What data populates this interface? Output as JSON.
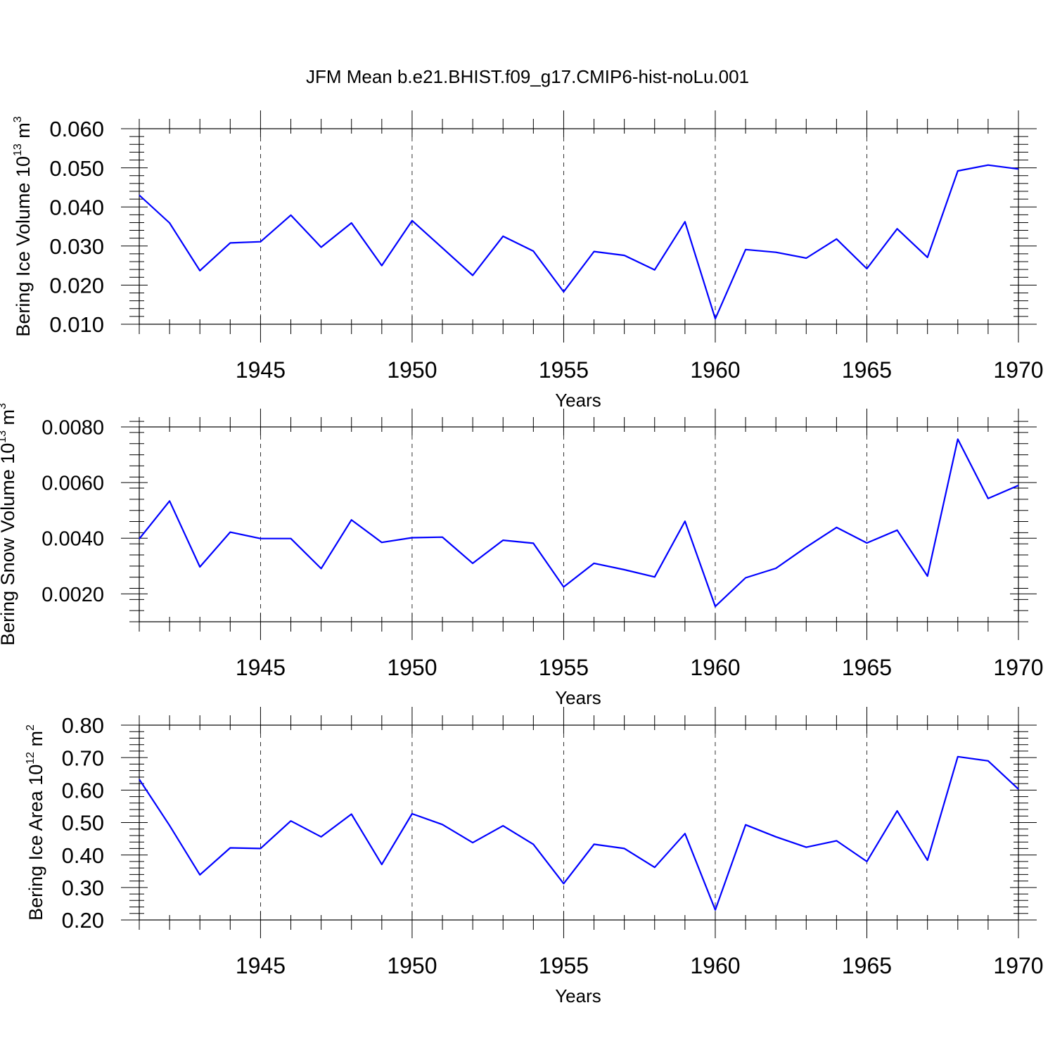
{
  "title": "JFM Mean b.e21.BHIST.f09_g17.CMIP6-hist-noLu.001",
  "line_color": "#0000ff",
  "chart_data": [
    {
      "type": "line",
      "ylabel": "Bering Ice Volume 10",
      "ylabel_sup": "13",
      "ylabel_unit": "m",
      "ylabel_unit_sup": "3",
      "xlabel": "Years",
      "xlim": [
        1941,
        1970
      ],
      "ylim": [
        0.01,
        0.06
      ],
      "xticks": [
        1945,
        1950,
        1955,
        1960,
        1965,
        1970
      ],
      "yticks": [
        0.01,
        0.02,
        0.03,
        0.04,
        0.05,
        0.06
      ],
      "ytick_labels": [
        "0.010",
        "0.020",
        "0.030",
        "0.040",
        "0.050",
        "0.060"
      ],
      "x": [
        1941,
        1942,
        1943,
        1944,
        1945,
        1946,
        1947,
        1948,
        1949,
        1950,
        1951,
        1952,
        1953,
        1954,
        1955,
        1956,
        1957,
        1958,
        1959,
        1960,
        1961,
        1962,
        1963,
        1964,
        1965,
        1966,
        1967,
        1968,
        1969,
        1970
      ],
      "values": [
        0.043,
        0.0359,
        0.0237,
        0.0308,
        0.0311,
        0.0379,
        0.0297,
        0.0359,
        0.025,
        0.0365,
        0.0295,
        0.0225,
        0.0325,
        0.0287,
        0.0183,
        0.0286,
        0.0276,
        0.0239,
        0.0362,
        0.0114,
        0.0291,
        0.0284,
        0.0269,
        0.0318,
        0.0242,
        0.0344,
        0.0271,
        0.0492,
        0.0507,
        0.0497
      ]
    },
    {
      "type": "line",
      "ylabel": "Bering Snow Volume 10",
      "ylabel_sup": "13",
      "ylabel_unit": "m",
      "ylabel_unit_sup": "3",
      "xlabel": "Years",
      "xlim": [
        1941,
        1970
      ],
      "ylim": [
        0.001,
        0.008
      ],
      "xticks": [
        1945,
        1950,
        1955,
        1960,
        1965,
        1970
      ],
      "yticks": [
        0.002,
        0.004,
        0.006,
        0.008
      ],
      "ytick_labels": [
        "0.0020",
        "0.0040",
        "0.0060",
        "0.0080"
      ],
      "x": [
        1941,
        1942,
        1943,
        1944,
        1945,
        1946,
        1947,
        1948,
        1949,
        1950,
        1951,
        1952,
        1953,
        1954,
        1955,
        1956,
        1957,
        1958,
        1959,
        1960,
        1961,
        1962,
        1963,
        1964,
        1965,
        1966,
        1967,
        1968,
        1969,
        1970
      ],
      "values": [
        0.00398,
        0.00534,
        0.00297,
        0.00422,
        0.00399,
        0.00399,
        0.00291,
        0.00466,
        0.00385,
        0.00402,
        0.00404,
        0.0031,
        0.00393,
        0.00382,
        0.00225,
        0.0031,
        0.00287,
        0.00261,
        0.00461,
        0.00155,
        0.00258,
        0.00292,
        0.00368,
        0.00439,
        0.00383,
        0.00429,
        0.00264,
        0.00756,
        0.00543,
        0.0059
      ]
    },
    {
      "type": "line",
      "ylabel": "Bering Ice Area 10",
      "ylabel_sup": "12",
      "ylabel_unit": "m",
      "ylabel_unit_sup": "2",
      "xlabel": "Years",
      "xlim": [
        1941,
        1970
      ],
      "ylim": [
        0.2,
        0.8
      ],
      "xticks": [
        1945,
        1950,
        1955,
        1960,
        1965,
        1970
      ],
      "yticks": [
        0.2,
        0.3,
        0.4,
        0.5,
        0.6,
        0.7,
        0.8
      ],
      "ytick_labels": [
        "0.20",
        "0.30",
        "0.40",
        "0.50",
        "0.60",
        "0.70",
        "0.80"
      ],
      "x": [
        1941,
        1942,
        1943,
        1944,
        1945,
        1946,
        1947,
        1948,
        1949,
        1950,
        1951,
        1952,
        1953,
        1954,
        1955,
        1956,
        1957,
        1958,
        1959,
        1960,
        1961,
        1962,
        1963,
        1964,
        1965,
        1966,
        1967,
        1968,
        1969,
        1970
      ],
      "values": [
        0.633,
        0.491,
        0.339,
        0.422,
        0.42,
        0.505,
        0.456,
        0.526,
        0.371,
        0.527,
        0.494,
        0.438,
        0.49,
        0.433,
        0.312,
        0.433,
        0.42,
        0.362,
        0.466,
        0.231,
        0.493,
        0.456,
        0.424,
        0.444,
        0.38,
        0.536,
        0.384,
        0.703,
        0.69,
        0.603
      ]
    }
  ]
}
